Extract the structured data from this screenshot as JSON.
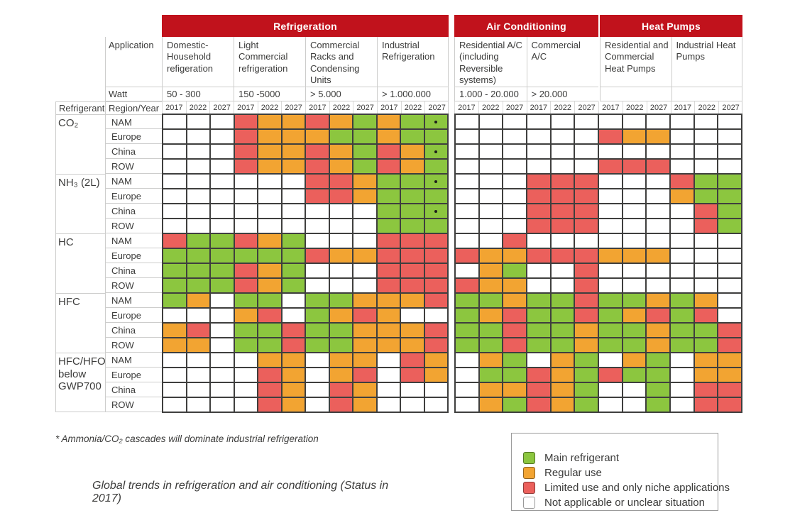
{
  "labels": {
    "application": "Application",
    "watt": "Watt",
    "refrigerant": "Refrigerant",
    "region_year": "Region/Year"
  },
  "footnote": "* Ammonia/CO₂ cascades will dominate industrial refrigeration",
  "caption": "Global trends in refrigeration and air conditioning (Status in 2017)",
  "colors": {
    "G": "#8CC63F",
    "O": "#F2A432",
    "R": "#EB605C",
    "W": "#FFFFFF",
    "header_red": "#C1121C",
    "grid_line": "#3F3F3E",
    "light_line": "#CDCDCC",
    "text": "#3C3C3B"
  },
  "chart_data": {
    "type": "heatmap",
    "title": "Global trends in refrigeration and air conditioning (Status in 2017)",
    "legend": [
      {
        "key": "G",
        "label": "Main refrigerant",
        "color": "#8CC63F"
      },
      {
        "key": "O",
        "label": "Regular use",
        "color": "#F2A432"
      },
      {
        "key": "R",
        "label": "Limited use and only niche applications",
        "color": "#EB605C"
      },
      {
        "key": "W",
        "label": "Not applicable or unclear situation",
        "color": "#FFFFFF"
      }
    ],
    "sections": [
      {
        "label": "Refrigeration",
        "applications": [
          {
            "name": "Domestic-Household refigeration",
            "watt": "50 - 300"
          },
          {
            "name": "Light Commercial refrigeration",
            "watt": "150 -5000"
          },
          {
            "name": "Commercial Racks and Condensing Units",
            "watt": "> 5.000"
          },
          {
            "name": "Industrial Refrigeration",
            "watt": "> 1.000.000"
          }
        ]
      },
      {
        "label": "Air Conditioning",
        "applications": [
          {
            "name": "Residential A/C (including Reversible systems)",
            "watt": "1.000 - 20.000"
          },
          {
            "name": "Commercial A/C",
            "watt": "> 20.000"
          }
        ]
      },
      {
        "label": "Heat Pumps",
        "applications": [
          {
            "name": "Residential and Commercial Heat Pumps",
            "watt": ""
          },
          {
            "name": "Industrial Heat Pumps",
            "watt": ""
          }
        ]
      }
    ],
    "years": [
      "2017",
      "2022",
      "2027"
    ],
    "cell_key": {
      "G": "Main refrigerant",
      "O": "Regular use",
      "R": "Limited use and only niche applications",
      "W": "Not applicable or unclear situation"
    },
    "rows": [
      {
        "refrigerant": "CO₂",
        "region": "NAM",
        "cells": "WWWROOROGOGGWWWWWWWWWWWW",
        "dots": [
          11
        ]
      },
      {
        "refrigerant": "CO₂",
        "region": "Europe",
        "cells": "WWWROOOGGOGGWWWWWWROOWWW"
      },
      {
        "refrigerant": "CO₂",
        "region": "China",
        "cells": "WWWROOROGROGWWWWWWWWWWWW",
        "dots": [
          11
        ]
      },
      {
        "refrigerant": "CO₂",
        "region": "ROW",
        "cells": "WWWROOROGROGWWWWWWRRRWWW"
      },
      {
        "refrigerant": "NH₃ (2L)",
        "region": "NAM",
        "cells": "WWWWWWRROGGGWWWRRRWWWRGG",
        "dots": [
          11
        ]
      },
      {
        "refrigerant": "NH₃ (2L)",
        "region": "Europe",
        "cells": "WWWWWWRROGGGWWWRRRWWWOGG"
      },
      {
        "refrigerant": "NH₃ (2L)",
        "region": "China",
        "cells": "WWWWWWWWWGGGWWWRRRWWWWRG",
        "dots": [
          11
        ]
      },
      {
        "refrigerant": "NH₃ (2L)",
        "region": "ROW",
        "cells": "WWWWWWWWWGGGWWWRRRWWWWRG"
      },
      {
        "refrigerant": "HC",
        "region": "NAM",
        "cells": "RGGROGWWWRRRWWRWWWWWWWWW"
      },
      {
        "refrigerant": "HC",
        "region": "Europe",
        "cells": "GGGGGGROORRRROORRROOOWWW"
      },
      {
        "refrigerant": "HC",
        "region": "China",
        "cells": "GGGROGWWWRRRWOGWWRWWWWWW"
      },
      {
        "refrigerant": "HC",
        "region": "ROW",
        "cells": "GGGROGWWWRRRROOWWRWWWWWW"
      },
      {
        "refrigerant": "HFC",
        "region": "NAM",
        "cells": "GOWGGWGGOOORGGOGGRGGOGOW"
      },
      {
        "refrigerant": "HFC",
        "region": "Europe",
        "cells": "WWWORWGOROWWGORGGRGORGRW"
      },
      {
        "refrigerant": "HFC",
        "region": "China",
        "cells": "ORWGGRGGOOORGGRGGOGGOGGR"
      },
      {
        "refrigerant": "HFC",
        "region": "ROW",
        "cells": "OOWGGRGGOOORGGRGGOGGOGGR"
      },
      {
        "refrigerant": "HFC/HFO below GWP700",
        "region": "NAM",
        "cells": "WWWWOOWOOWROWOGWOGWOGWOO"
      },
      {
        "refrigerant": "HFC/HFO below GWP700",
        "region": "Europe",
        "cells": "WWWWROWORWROWGGROGRGGWOO"
      },
      {
        "refrigerant": "HFC/HFO below GWP700",
        "region": "China",
        "cells": "WWWWROWROWWWWOOROGWWGWRR"
      },
      {
        "refrigerant": "HFC/HFO below GWP700",
        "region": "ROW",
        "cells": "WWWWROWROWWWWOGROGWWGWRR"
      }
    ]
  }
}
